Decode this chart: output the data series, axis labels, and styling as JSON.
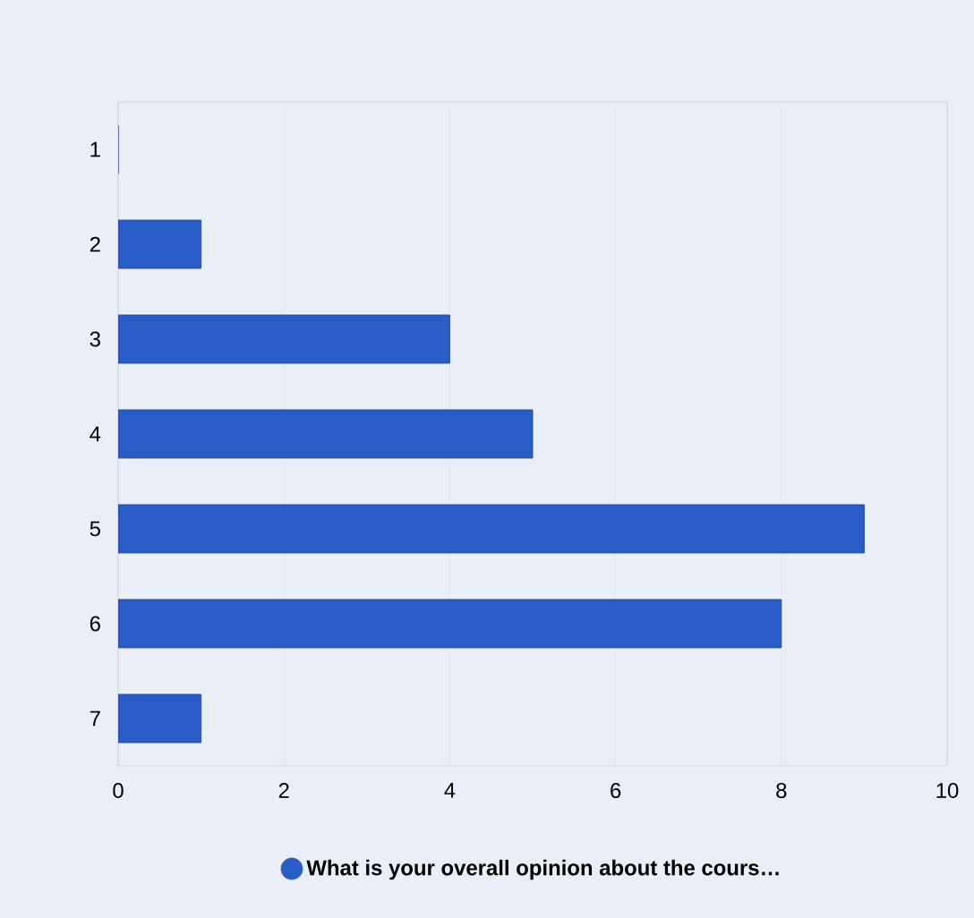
{
  "chart_data": {
    "type": "bar",
    "orientation": "horizontal",
    "categories": [
      "1",
      "2",
      "3",
      "4",
      "5",
      "6",
      "7"
    ],
    "series": [
      {
        "name": "What is your overall opinion about the cours…",
        "color": "#2a5cc8",
        "values": [
          0,
          1,
          4,
          5,
          9,
          8,
          1
        ]
      }
    ],
    "xlim": [
      0,
      10
    ],
    "xticks": [
      0,
      2,
      4,
      6,
      8,
      10
    ],
    "grid": "x",
    "legend": "bottom"
  }
}
